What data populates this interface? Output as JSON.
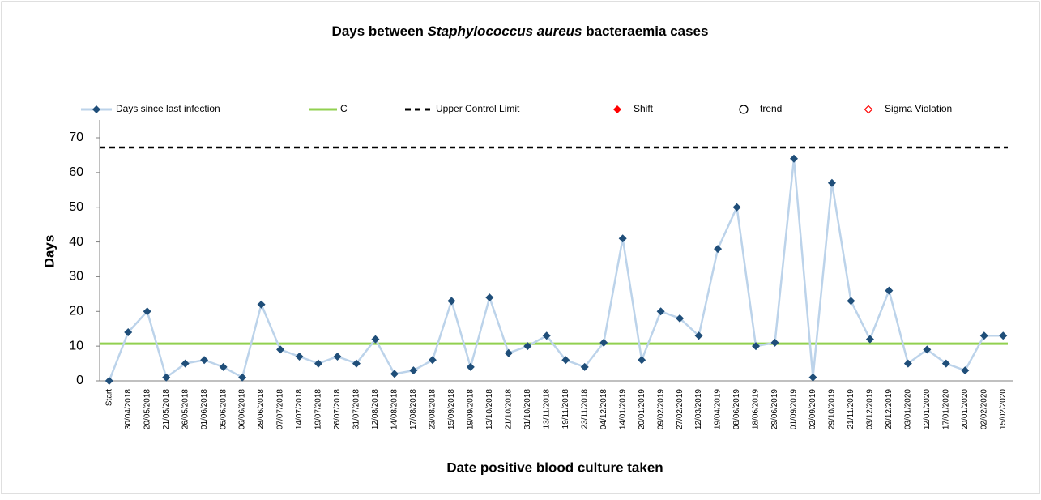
{
  "chart_data": {
    "type": "line",
    "title_parts": [
      "Days between ",
      "Staphylococcus aureus",
      " bacteraemia cases"
    ],
    "x_label": "Date positive blood culture taken",
    "y_label": "Days",
    "categories": [
      "Start",
      "30/04/2018",
      "20/05/2018",
      "21/05/2018",
      "26/05/2018",
      "01/06/2018",
      "05/06/2018",
      "06/06/2018",
      "28/06/2018",
      "07/07/2018",
      "14/07/2018",
      "19/07/2018",
      "26/07/2018",
      "31/07/2018",
      "12/08/2018",
      "14/08/2018",
      "17/08/2018",
      "23/08/2018",
      "15/09/2018",
      "19/09/2018",
      "13/10/2018",
      "21/10/2018",
      "31/10/2018",
      "13/11/2018",
      "19/11/2018",
      "23/11/2018",
      "04/12/2018",
      "14/01/2019",
      "20/01/2019",
      "09/02/2019",
      "27/02/2019",
      "12/03/2019",
      "19/04/2019",
      "08/06/2019",
      "18/06/2019",
      "29/06/2019",
      "01/09/2019",
      "02/09/2019",
      "29/10/2019",
      "21/11/2019",
      "03/12/2019",
      "29/12/2019",
      "03/01/2020",
      "12/01/2020",
      "17/01/2020",
      "20/01/2020",
      "02/02/2020",
      "15/02/2020"
    ],
    "series": [
      {
        "name": "Days since last infection",
        "color": "#bcd3ea",
        "marker_color": "#1f4e79",
        "values": [
          0,
          14,
          20,
          1,
          5,
          6,
          4,
          1,
          22,
          9,
          7,
          5,
          7,
          5,
          12,
          2,
          3,
          6,
          23,
          4,
          24,
          8,
          10,
          13,
          6,
          4,
          11,
          41,
          6,
          20,
          18,
          13,
          38,
          50,
          10,
          11,
          64,
          1,
          57,
          23,
          12,
          26,
          5,
          9,
          5,
          3,
          13,
          13
        ]
      }
    ],
    "reference_lines": [
      {
        "name": "C",
        "value": 10.7,
        "color": "#92d050",
        "dash": false
      },
      {
        "name": "Upper Control Limit",
        "value": 67.2,
        "color": "#000000",
        "dash": true
      }
    ],
    "legend_only": [
      {
        "name": "Shift",
        "color": "#ff0000",
        "marker": "diamond"
      },
      {
        "name": "trend",
        "color": "#000000",
        "marker": "circle"
      },
      {
        "name": "Sigma Violation",
        "color": "#ff0000",
        "marker": "open-diamond"
      }
    ],
    "ylim": [
      0,
      70
    ],
    "yticks": [
      0,
      10,
      20,
      30,
      40,
      50,
      60,
      70
    ],
    "grid": false,
    "legend": "top"
  }
}
